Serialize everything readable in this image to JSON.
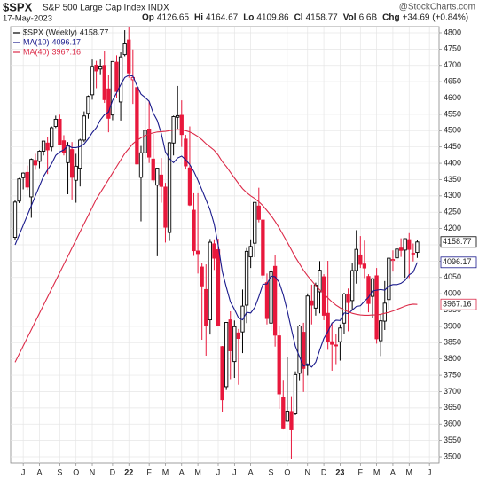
{
  "chart_data": {
    "type": "candlestick",
    "symbol": "$SPX",
    "title": "S&P 500 Large Cap Index INDX",
    "date": "17-May-2023",
    "quote": [
      {
        "label": "Op",
        "value": "4126.65"
      },
      {
        "label": "Hi",
        "value": "4164.67"
      },
      {
        "label": "Lo",
        "value": "4109.86"
      },
      {
        "label": "Cl",
        "value": "4158.77"
      },
      {
        "label": "Vol",
        "value": "6.6B"
      },
      {
        "label": "Chg",
        "value": "+34.69 (+0.84%)"
      }
    ],
    "watermark": "@StockCharts.com",
    "legend": "$SPX (Weekly)",
    "last_label": "4158.77",
    "up_color": "#000000",
    "down_color": "#e8183c",
    "categories": [
      null,
      null,
      "J",
      null,
      null,
      null,
      "A",
      null,
      null,
      null,
      null,
      "S",
      null,
      null,
      null,
      "O",
      null,
      null,
      null,
      "N",
      null,
      null,
      null,
      null,
      "D",
      null,
      null,
      null,
      "22",
      null,
      null,
      null,
      null,
      "F",
      null,
      null,
      null,
      "M",
      null,
      null,
      null,
      "A",
      null,
      null,
      null,
      "M",
      null,
      null,
      null,
      null,
      "J",
      null,
      null,
      null,
      "J",
      null,
      null,
      null,
      "A",
      null,
      null,
      null,
      null,
      "S",
      null,
      null,
      null,
      "O",
      null,
      null,
      null,
      null,
      "N",
      null,
      null,
      null,
      "D",
      null,
      null,
      null,
      "23",
      null,
      null,
      null,
      null,
      "F",
      null,
      null,
      null,
      "M",
      null,
      null,
      null,
      "A",
      null,
      null,
      null,
      "M",
      null,
      null,
      null,
      null,
      "J",
      null
    ],
    "open": [
      4173,
      4284,
      4356,
      4372,
      4297,
      4409,
      4406,
      4437,
      4462,
      4450,
      4513,
      4535,
      4469,
      4402,
      4442,
      4348,
      4385,
      4471,
      4553,
      4610,
      4701,
      4689,
      4700,
      4628,
      4548,
      4710,
      4588,
      4733,
      4778,
      4656,
      4632,
      4357,
      4432,
      4505,
      4413,
      4333,
      4364,
      4327,
      4188,
      4462,
      4541,
      4547,
      4474,
      4386,
      4256,
      4131,
      4082,
      4013,
      3920,
      4153,
      4135,
      3838,
      3715,
      3920,
      3792,
      3880,
      3883,
      3965,
      4113,
      4155,
      4269,
      4226,
      4034,
      3910,
      4084,
      3871,
      3682,
      3609,
      3639,
      3632,
      3756,
      3882,
      3780,
      3978,
      3956,
      4006,
      4052,
      3940,
      3853,
      3843,
      3853,
      3910,
      3999,
      3979,
      4071,
      4119,
      4091,
      4053,
      3992,
      4055,
      3856,
      3916,
      3982,
      4102,
      4110,
      4140,
      4134,
      4166,
      4124,
      4126.65,
      null,
      null,
      null,
      null
    ],
    "high": [
      4286,
      4355,
      4372,
      4393,
      4415,
      4429,
      4440,
      4468,
      4480,
      4513,
      4546,
      4549,
      4486,
      4465,
      4465,
      4429,
      4475,
      4559,
      4608,
      4718,
      4714,
      4718,
      4743,
      4672,
      4713,
      4731,
      4740,
      4808,
      4819,
      4749,
      4632,
      4453,
      4595,
      4590,
      4490,
      4385,
      4416,
      4340,
      4465,
      4546,
      4637,
      4593,
      4487,
      4513,
      4308,
      4308,
      4095,
      4090,
      4168,
      4167,
      4169,
      3840,
      3913,
      3946,
      3918,
      3892,
      4013,
      4140,
      4167,
      4280,
      4325,
      4227,
      4062,
      4076,
      4119,
      3900,
      3736,
      3806,
      3686,
      3762,
      3905,
      3911,
      4001,
      4028,
      4034,
      4100,
      4060,
      4101,
      3911,
      3878,
      3906,
      4003,
      4016,
      4095,
      4195,
      4177,
      4163,
      4060,
      4048,
      4079,
      3938,
      4039,
      4110,
      4133,
      4164,
      4170,
      4170,
      4186,
      4154,
      4164.67,
      null,
      null,
      null,
      null
    ],
    "low": [
      4164,
      4278,
      4320,
      4318,
      4233,
      4380,
      4385,
      4424,
      4367,
      4437,
      4508,
      4457,
      4424,
      4305,
      4289,
      4279,
      4329,
      4465,
      4537,
      4595,
      4630,
      4673,
      4585,
      4495,
      4532,
      4600,
      4531,
      4728,
      4662,
      4582,
      4395,
      4222,
      4414,
      4401,
      4342,
      4115,
      4279,
      4157,
      4162,
      4424,
      4506,
      4450,
      4381,
      4269,
      4116,
      4062,
      3859,
      3810,
      3875,
      4073,
      3900,
      3636,
      3705,
      3738,
      3742,
      3721,
      3818,
      3910,
      4079,
      4112,
      4219,
      4045,
      3906,
      3886,
      3838,
      3647,
      3584,
      3608,
      3492,
      3628,
      3735,
      3699,
      3749,
      3906,
      3933,
      3940,
      3919,
      3828,
      3764,
      3784,
      3795,
      3877,
      3885,
      3949,
      4031,
      4079,
      4048,
      3943,
      3925,
      3847,
      3809,
      3889,
      3951,
      4068,
      4096,
      4113,
      4049,
      4048,
      4099,
      4109.86,
      null,
      null,
      null,
      null
    ],
    "close": [
      4281,
      4352,
      4370,
      4327,
      4412,
      4395,
      4437,
      4468,
      4441,
      4509,
      4535,
      4458,
      4432,
      4455,
      4357,
      4391,
      4471,
      4545,
      4605,
      4697,
      4683,
      4698,
      4595,
      4538,
      4712,
      4620,
      4726,
      4766,
      4677,
      4663,
      4398,
      4432,
      4501,
      4419,
      4349,
      4385,
      4329,
      4204,
      4463,
      4543,
      4546,
      4488,
      4392,
      4272,
      4132,
      4123,
      4024,
      3901,
      4158,
      4109,
      3901,
      3675,
      3912,
      3825,
      3899,
      3863,
      3962,
      4130,
      4145,
      4280,
      4228,
      4057,
      3924,
      4067,
      3873,
      3693,
      3586,
      3640,
      3583,
      3752,
      3901,
      3771,
      3993,
      3965,
      4026,
      4072,
      3934,
      3852,
      3845,
      3840,
      3895,
      3999,
      3973,
      4071,
      4136,
      4090,
      4079,
      3970,
      4046,
      3862,
      3917,
      3971,
      4109,
      4105,
      4137,
      4133,
      4169,
      4136,
      4124,
      4158.77,
      null,
      null,
      null,
      null
    ],
    "overlays": [
      {
        "name": "MA(10)",
        "color": "#1a1a8c",
        "last_label": "4096.17",
        "values": [
          4150,
          4180,
          4210,
          4240,
          4270,
          4300,
          4330,
          4360,
          4380,
          4399,
          4424,
          4435,
          4441,
          4454,
          4448,
          4448,
          4451,
          4459,
          4475,
          4494,
          4509,
          4533,
          4549,
          4557,
          4593,
          4616,
          4641,
          4663,
          4670,
          4667,
          4638,
          4612,
          4602,
          4590,
          4554,
          4531,
          4491,
          4435,
          4414,
          4402,
          4416,
          4422,
          4411,
          4396,
          4375,
          4348,
          4318,
          4288,
          4257,
          4214,
          4149,
          4068,
          4020,
          3975,
          3952,
          3926,
          3920,
          3943,
          3941,
          3958,
          3991,
          4029,
          4030,
          4054,
          4052,
          4035,
          3997,
          3948,
          3892,
          3839,
          3807,
          3778,
          3785,
          3775,
          3790,
          3828,
          3863,
          3884,
          3910,
          3919,
          3918,
          3941,
          3939,
          3950,
          3961,
          3963,
          3977,
          3989,
          4009,
          4011,
          4013,
          4011,
          4024,
          4028,
          4028,
          4032,
          4041,
          4058,
          4066,
          4096.17,
          null,
          null,
          null,
          null
        ]
      },
      {
        "name": "MA(40)",
        "color": "#dc2a48",
        "last_label": "3967.16",
        "values": [
          3790,
          3815,
          3840,
          3865,
          3890,
          3915,
          3940,
          3965,
          3990,
          4015,
          4040,
          4065,
          4090,
          4115,
          4140,
          4165,
          4190,
          4215,
          4240,
          4265,
          4290,
          4310,
          4330,
          4350,
          4370,
          4390,
          4410,
          4430,
          4445,
          4460,
          4470,
          4478,
          4485,
          4490,
          4493,
          4496,
          4497,
          4498,
          4500,
          4502,
          4503,
          4502,
          4500,
          4496,
          4490,
          4482,
          4472,
          4460,
          4450,
          4440,
          4425,
          4405,
          4390,
          4372,
          4355,
          4338,
          4322,
          4310,
          4300,
          4292,
          4282,
          4270,
          4255,
          4240,
          4222,
          4202,
          4180,
          4158,
          4135,
          4112,
          4092,
          4072,
          4055,
          4040,
          4025,
          4012,
          4000,
          3987,
          3975,
          3965,
          3957,
          3950,
          3945,
          3940,
          3937,
          3935,
          3934,
          3934,
          3935,
          3935,
          3937,
          3940,
          3943,
          3947,
          3952,
          3957,
          3962,
          3966,
          3968,
          3967.16,
          null,
          null,
          null,
          null
        ]
      }
    ],
    "ylim": [
      3481,
      4819
    ],
    "yticks": [
      3500,
      3550,
      3600,
      3650,
      3700,
      3750,
      3800,
      3850,
      3900,
      3950,
      4000,
      4050,
      4100,
      4150,
      4200,
      4250,
      4300,
      4350,
      4400,
      4450,
      4500,
      4550,
      4600,
      4650,
      4700,
      4750,
      4800
    ],
    "grid": true
  }
}
